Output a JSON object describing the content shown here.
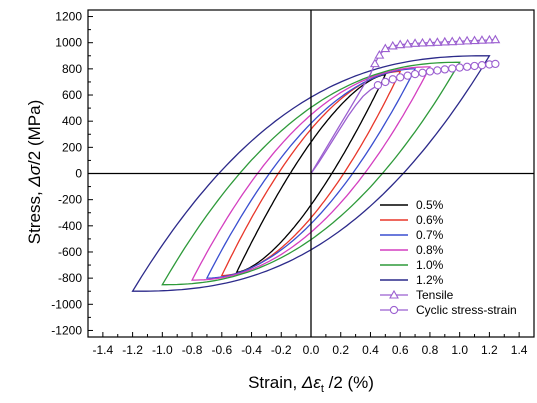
{
  "chart_data": {
    "type": "line",
    "title": "",
    "xlabel": {
      "prefix": "Strain, ",
      "symbol": "Δε",
      "subscript": "t",
      "suffix": " /2 (%)"
    },
    "ylabel": {
      "prefix": "Stress, ",
      "symbol": "Δσ",
      "suffix": "/2 (MPa)"
    },
    "xlim": [
      -1.5,
      1.5
    ],
    "ylim": [
      -1250,
      1250
    ],
    "x_ticks": [
      -1.4,
      -1.2,
      -1.0,
      -0.8,
      -0.6,
      -0.4,
      -0.2,
      0.0,
      0.2,
      0.4,
      0.6,
      0.8,
      1.0,
      1.2,
      1.4
    ],
    "x_tick_labels": [
      "-1.4",
      "-1.2",
      "-1.0",
      "-0.8",
      "-0.6",
      "-0.4",
      "-0.2",
      "0.0",
      "0.2",
      "0.4",
      "0.6",
      "0.8",
      "1.0",
      "1.2",
      "1.4"
    ],
    "y_ticks": [
      -1200,
      -1000,
      -800,
      -600,
      -400,
      -200,
      0,
      200,
      400,
      600,
      800,
      1000,
      1200
    ],
    "y_tick_labels": [
      "-1200",
      "-1000",
      "-800",
      "-600",
      "-400",
      "-200",
      "0",
      "200",
      "400",
      "600",
      "800",
      "1000",
      "1200"
    ],
    "grid": false,
    "zero_lines": true,
    "legend_position": "lower-right",
    "loops": [
      {
        "name": "0.5%",
        "color": "#000000",
        "strain_amp": 0.5,
        "stress_amp": 755,
        "strain_at_zero_stress": 0.14,
        "stress_at_zero_strain": 200
      },
      {
        "name": "0.6%",
        "color": "#e8372a",
        "strain_amp": 0.6,
        "stress_amp": 780,
        "strain_at_zero_stress": 0.22,
        "stress_at_zero_strain": 285
      },
      {
        "name": "0.7%",
        "color": "#3a4fd0",
        "strain_amp": 0.7,
        "stress_amp": 800,
        "strain_at_zero_stress": 0.28,
        "stress_at_zero_strain": 335
      },
      {
        "name": "0.8%",
        "color": "#d43fc0",
        "strain_amp": 0.8,
        "stress_amp": 815,
        "strain_at_zero_stress": 0.36,
        "stress_at_zero_strain": 380
      },
      {
        "name": "1.0%",
        "color": "#2e9a3a",
        "strain_amp": 1.0,
        "stress_amp": 850,
        "strain_at_zero_stress": 0.48,
        "stress_at_zero_strain": 470
      },
      {
        "name": "1.2%",
        "color": "#2c2a8a",
        "strain_amp": 1.2,
        "stress_amp": 900,
        "strain_at_zero_stress": 0.62,
        "stress_at_zero_strain": 560
      }
    ],
    "tensile": {
      "name": "Tensile",
      "color": "#9b5fd0",
      "marker": "triangle",
      "points": [
        [
          0.0,
          0
        ],
        [
          0.05,
          95
        ],
        [
          0.1,
          190
        ],
        [
          0.15,
          285
        ],
        [
          0.2,
          380
        ],
        [
          0.25,
          475
        ],
        [
          0.3,
          570
        ],
        [
          0.35,
          665
        ],
        [
          0.4,
          760
        ],
        [
          0.43,
          840
        ],
        [
          0.46,
          905
        ],
        [
          0.5,
          955
        ],
        [
          0.55,
          975
        ],
        [
          0.6,
          985
        ],
        [
          0.65,
          990
        ],
        [
          0.7,
          995
        ],
        [
          0.75,
          998
        ],
        [
          0.8,
          1000
        ],
        [
          0.85,
          1003
        ],
        [
          0.9,
          1006
        ],
        [
          0.95,
          1008
        ],
        [
          1.0,
          1011
        ],
        [
          1.05,
          1014
        ],
        [
          1.1,
          1016
        ],
        [
          1.15,
          1019
        ],
        [
          1.2,
          1021
        ],
        [
          1.24,
          1023
        ]
      ]
    },
    "cyclic": {
      "name": "Cyclic stress-strain",
      "color": "#9b5fd0",
      "marker": "circle",
      "points": [
        [
          0.0,
          0
        ],
        [
          0.05,
          80
        ],
        [
          0.1,
          170
        ],
        [
          0.15,
          260
        ],
        [
          0.2,
          350
        ],
        [
          0.25,
          440
        ],
        [
          0.3,
          520
        ],
        [
          0.35,
          590
        ],
        [
          0.4,
          640
        ],
        [
          0.45,
          675
        ],
        [
          0.5,
          700
        ],
        [
          0.55,
          720
        ],
        [
          0.6,
          735
        ],
        [
          0.65,
          748
        ],
        [
          0.7,
          760
        ],
        [
          0.75,
          770
        ],
        [
          0.8,
          780
        ],
        [
          0.85,
          788
        ],
        [
          0.9,
          796
        ],
        [
          0.95,
          803
        ],
        [
          1.0,
          810
        ],
        [
          1.05,
          816
        ],
        [
          1.1,
          822
        ],
        [
          1.15,
          828
        ],
        [
          1.2,
          834
        ],
        [
          1.24,
          838
        ]
      ]
    },
    "legend": [
      "0.5%",
      "0.6%",
      "0.7%",
      "0.8%",
      "1.0%",
      "1.2%",
      "Tensile",
      "Cyclic stress-strain"
    ]
  }
}
